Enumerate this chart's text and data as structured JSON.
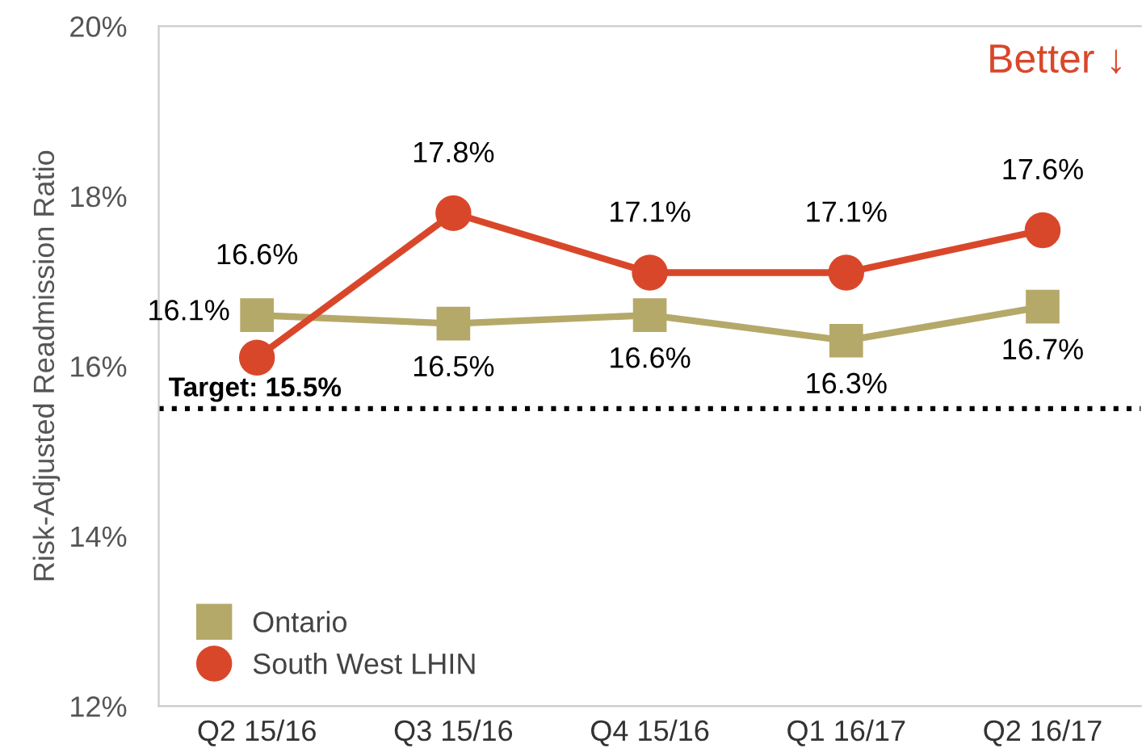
{
  "chart_data": {
    "type": "line",
    "ylabel": "Risk-Adjusted Readmission Ratio",
    "categories": [
      "Q2 15/16",
      "Q3 15/16",
      "Q4 15/16",
      "Q1 16/17",
      "Q2 16/17"
    ],
    "series": [
      {
        "name": "Ontario",
        "color": "#b5a96a",
        "marker": "square",
        "values": [
          16.6,
          16.5,
          16.6,
          16.3,
          16.7
        ],
        "value_labels": [
          "16.6%",
          "16.5%",
          "16.6%",
          "16.3%",
          "16.7%"
        ]
      },
      {
        "name": "South West LHIN",
        "color": "#d9472b",
        "marker": "circle",
        "values": [
          16.1,
          17.8,
          17.1,
          17.1,
          17.6
        ],
        "value_labels": [
          "16.1%",
          "17.8%",
          "17.1%",
          "17.1%",
          "17.6%"
        ]
      }
    ],
    "ylim": [
      12,
      20
    ],
    "yticks": [
      {
        "value": 12,
        "label": "12%"
      },
      {
        "value": 14,
        "label": "14%"
      },
      {
        "value": 16,
        "label": "16%"
      },
      {
        "value": 18,
        "label": "18%"
      },
      {
        "value": 20,
        "label": "20%"
      }
    ],
    "ref_lines": [
      {
        "axis": "y",
        "value": 15.5,
        "label": "Target: 15.5%",
        "color": "#000000",
        "line_style": "dotted"
      }
    ],
    "annotations": [
      "Better ↓"
    ],
    "legend": "bottom left",
    "grid": false,
    "line_style": "solid"
  }
}
